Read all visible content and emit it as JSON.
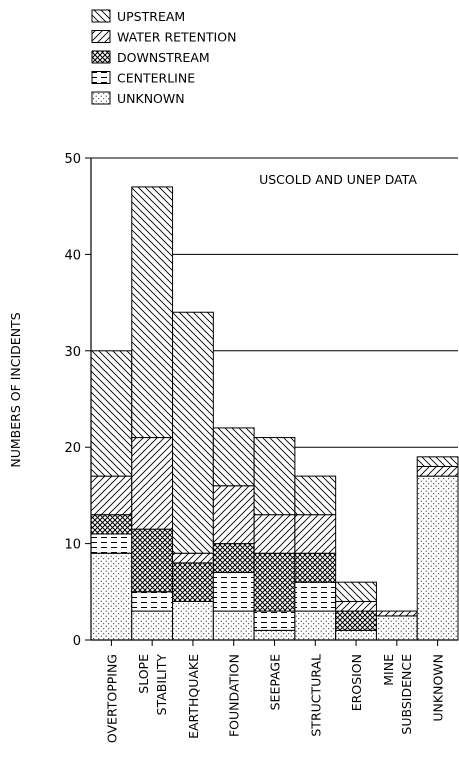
{
  "chart_data": {
    "type": "bar",
    "stacked": true,
    "annotation": "USCOLD AND UNEP DATA",
    "xlabel": "",
    "ylabel": "NUMBERS OF INCIDENTS",
    "ylim": [
      0,
      50
    ],
    "yticks": [
      0,
      10,
      20,
      30,
      40,
      50
    ],
    "grid": "horizontal",
    "legend_position": "top-left",
    "categories": [
      [
        "OVERTOPPING"
      ],
      [
        "SLOPE",
        "STABILITY"
      ],
      [
        "EARTHQUAKE"
      ],
      [
        "FOUNDATION"
      ],
      [
        "SEEPAGE"
      ],
      [
        "STRUCTURAL"
      ],
      [
        "EROSION"
      ],
      [
        "MINE",
        "SUBSIDENCE"
      ],
      [
        "UNKNOWN"
      ]
    ],
    "series": [
      {
        "name": "UNKNOWN",
        "pattern": "dots",
        "values": [
          9,
          3,
          4,
          3,
          1,
          3,
          1,
          2.5,
          17
        ]
      },
      {
        "name": "CENTERLINE",
        "pattern": "dash",
        "values": [
          2,
          2,
          0,
          4,
          2,
          3,
          0,
          0,
          0
        ]
      },
      {
        "name": "DOWNSTREAM",
        "pattern": "cross",
        "values": [
          2,
          6.5,
          4,
          3,
          6,
          3,
          2,
          0,
          0
        ]
      },
      {
        "name": "WATER RETENTION",
        "pattern": "diagfwd",
        "values": [
          4,
          9.5,
          1,
          6,
          4,
          4,
          1,
          0.5,
          1
        ]
      },
      {
        "name": "UPSTREAM",
        "pattern": "diagback",
        "values": [
          13,
          26,
          25,
          6,
          8,
          4,
          2,
          0,
          1
        ]
      }
    ],
    "legend_order": [
      "UPSTREAM",
      "WATER RETENTION",
      "DOWNSTREAM",
      "CENTERLINE",
      "UNKNOWN"
    ]
  }
}
